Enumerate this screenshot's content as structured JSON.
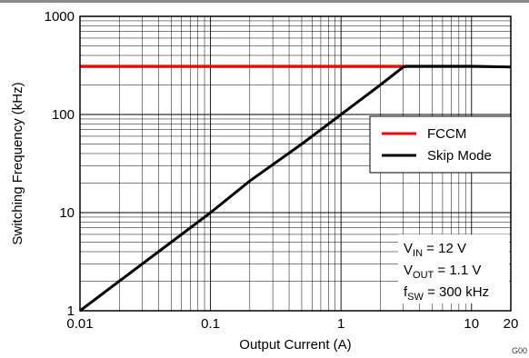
{
  "chart_data": {
    "type": "line",
    "xlabel": "Output Current (A)",
    "ylabel": "Switching Frequency (kHz)",
    "xscale": "log",
    "yscale": "log",
    "xlim": [
      0.01,
      20
    ],
    "ylim": [
      1,
      1000
    ],
    "grid": true,
    "x_ticks": [
      {
        "value": 0.01,
        "label": "0.01"
      },
      {
        "value": 0.1,
        "label": "0.1"
      },
      {
        "value": 1,
        "label": "1"
      },
      {
        "value": 10,
        "label": "10"
      },
      {
        "value": 20,
        "label": "20"
      }
    ],
    "y_ticks": [
      {
        "value": 1,
        "label": "1"
      },
      {
        "value": 10,
        "label": "10"
      },
      {
        "value": 100,
        "label": "100"
      },
      {
        "value": 1000,
        "label": "1000"
      }
    ],
    "legend_position": "right",
    "series": [
      {
        "name": "FCCM",
        "color": "#ff0000",
        "points": [
          [
            0.01,
            310
          ],
          [
            3.2,
            310
          ]
        ]
      },
      {
        "name": "Skip Mode",
        "color": "#000000",
        "points": [
          [
            0.01,
            1
          ],
          [
            0.05,
            5
          ],
          [
            0.1,
            10
          ],
          [
            0.2,
            21
          ],
          [
            0.5,
            50
          ],
          [
            1,
            100
          ],
          [
            2,
            200
          ],
          [
            3,
            305
          ],
          [
            3.2,
            310
          ],
          [
            10,
            310
          ],
          [
            20,
            305
          ]
        ]
      }
    ],
    "annotation": {
      "line1": {
        "main": "V",
        "sub": "IN",
        "rest": " = 12 V"
      },
      "line2": {
        "main": "V",
        "sub": "OUT",
        "rest": " = 1.1 V"
      },
      "line3": {
        "main": "f",
        "sub": "SW",
        "rest": " = 300 kHz"
      }
    },
    "corner_label": "G00"
  }
}
